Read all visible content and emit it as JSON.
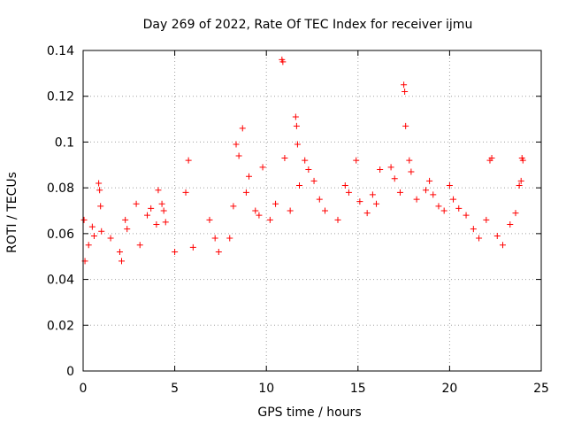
{
  "chart_data": {
    "type": "scatter",
    "title": "Day 269 of 2022, Rate Of TEC Index for receiver ijmu",
    "xlabel": "GPS time / hours",
    "ylabel": "ROTI / TECUs",
    "xlim": [
      0,
      25
    ],
    "ylim": [
      0,
      0.14
    ],
    "x_ticks": [
      0,
      5,
      10,
      15,
      20,
      25
    ],
    "x_tick_labels": [
      "0",
      "5",
      "10",
      "15",
      "20",
      "25"
    ],
    "y_ticks": [
      0,
      0.02,
      0.04,
      0.06,
      0.08,
      0.1,
      0.12,
      0.14
    ],
    "y_tick_labels": [
      "0",
      "0.02",
      "0.04",
      "0.06",
      "0.08",
      "0.1",
      "0.12",
      "0.14"
    ],
    "grid": true,
    "marker": "plus",
    "color": "#ff0000",
    "series": [
      {
        "points": [
          [
            0.05,
            0.066
          ],
          [
            0.1,
            0.048
          ],
          [
            0.3,
            0.055
          ],
          [
            0.5,
            0.063
          ],
          [
            0.6,
            0.059
          ],
          [
            0.85,
            0.082
          ],
          [
            0.9,
            0.079
          ],
          [
            0.95,
            0.072
          ],
          [
            1.0,
            0.061
          ],
          [
            1.5,
            0.058
          ],
          [
            2.0,
            0.052
          ],
          [
            2.1,
            0.048
          ],
          [
            2.3,
            0.066
          ],
          [
            2.4,
            0.062
          ],
          [
            2.9,
            0.073
          ],
          [
            3.1,
            0.055
          ],
          [
            3.5,
            0.068
          ],
          [
            3.7,
            0.071
          ],
          [
            4.0,
            0.064
          ],
          [
            4.1,
            0.079
          ],
          [
            4.3,
            0.073
          ],
          [
            4.4,
            0.07
          ],
          [
            4.5,
            0.065
          ],
          [
            5.0,
            0.052
          ],
          [
            5.6,
            0.078
          ],
          [
            5.75,
            0.092
          ],
          [
            6.0,
            0.054
          ],
          [
            6.9,
            0.066
          ],
          [
            7.2,
            0.058
          ],
          [
            7.4,
            0.052
          ],
          [
            8.0,
            0.058
          ],
          [
            8.2,
            0.072
          ],
          [
            8.35,
            0.099
          ],
          [
            8.5,
            0.094
          ],
          [
            8.7,
            0.106
          ],
          [
            8.9,
            0.078
          ],
          [
            9.05,
            0.085
          ],
          [
            9.4,
            0.07
          ],
          [
            9.6,
            0.068
          ],
          [
            9.8,
            0.089
          ],
          [
            10.2,
            0.066
          ],
          [
            10.5,
            0.073
          ],
          [
            10.85,
            0.136
          ],
          [
            10.9,
            0.135
          ],
          [
            11.0,
            0.093
          ],
          [
            11.3,
            0.07
          ],
          [
            11.6,
            0.111
          ],
          [
            11.65,
            0.107
          ],
          [
            11.7,
            0.099
          ],
          [
            11.8,
            0.081
          ],
          [
            12.1,
            0.092
          ],
          [
            12.3,
            0.088
          ],
          [
            12.6,
            0.083
          ],
          [
            12.9,
            0.075
          ],
          [
            13.2,
            0.07
          ],
          [
            13.9,
            0.066
          ],
          [
            14.3,
            0.081
          ],
          [
            14.5,
            0.078
          ],
          [
            14.9,
            0.092
          ],
          [
            15.1,
            0.074
          ],
          [
            15.5,
            0.069
          ],
          [
            15.8,
            0.077
          ],
          [
            16.0,
            0.073
          ],
          [
            16.2,
            0.088
          ],
          [
            16.8,
            0.089
          ],
          [
            17.0,
            0.084
          ],
          [
            17.3,
            0.078
          ],
          [
            17.5,
            0.125
          ],
          [
            17.55,
            0.122
          ],
          [
            17.6,
            0.107
          ],
          [
            17.8,
            0.092
          ],
          [
            17.9,
            0.087
          ],
          [
            18.2,
            0.075
          ],
          [
            18.7,
            0.079
          ],
          [
            18.9,
            0.083
          ],
          [
            19.1,
            0.077
          ],
          [
            19.4,
            0.072
          ],
          [
            19.7,
            0.07
          ],
          [
            20.0,
            0.081
          ],
          [
            20.2,
            0.075
          ],
          [
            20.5,
            0.071
          ],
          [
            20.9,
            0.068
          ],
          [
            21.3,
            0.062
          ],
          [
            21.6,
            0.058
          ],
          [
            22.0,
            0.066
          ],
          [
            22.2,
            0.092
          ],
          [
            22.3,
            0.093
          ],
          [
            22.6,
            0.059
          ],
          [
            22.9,
            0.055
          ],
          [
            23.3,
            0.064
          ],
          [
            23.6,
            0.069
          ],
          [
            23.8,
            0.081
          ],
          [
            23.9,
            0.083
          ],
          [
            23.95,
            0.093
          ],
          [
            24.0,
            0.092
          ]
        ]
      }
    ]
  }
}
